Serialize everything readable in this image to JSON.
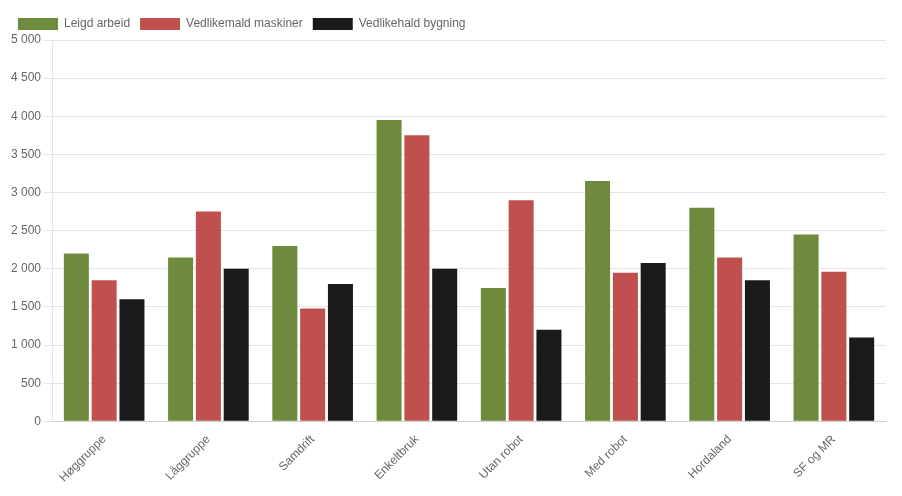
{
  "chart_data": {
    "type": "bar",
    "categories": [
      "Høggruppe",
      "Låggruppe",
      "Samdrift",
      "Enkeltbruk",
      "Utan robot",
      "Med robot",
      "Hordaland",
      "SF og MR"
    ],
    "series": [
      {
        "name": "Leigd arbeid",
        "color": "#6e8b3d",
        "values": [
          2200,
          2150,
          2300,
          3950,
          1750,
          3150,
          2800,
          2450
        ]
      },
      {
        "name": "Vedlikemald maskiner",
        "color": "#c0504d",
        "values": [
          1850,
          2750,
          1480,
          3750,
          2900,
          1950,
          2150,
          1960
        ]
      },
      {
        "name": "Vedlikehald bygning",
        "color": "#1a1a1a",
        "values": [
          1600,
          2000,
          1800,
          2000,
          1200,
          2075,
          1850,
          1100
        ]
      }
    ],
    "ylim": [
      0,
      5000
    ],
    "yticks": [
      0,
      500,
      {
        "value": 1000,
        "label": "1 000"
      },
      {
        "value": 1500,
        "label": "1 500"
      },
      {
        "value": 2000,
        "label": "2 000"
      },
      {
        "value": 2500,
        "label": "2 500"
      },
      {
        "value": 3000,
        "label": "3 000"
      },
      {
        "value": 3500,
        "label": "3 500"
      },
      {
        "value": 4000,
        "label": "4 000"
      },
      {
        "value": 4500,
        "label": "4 500"
      },
      {
        "value": 5000,
        "label": "5 000"
      }
    ],
    "grid": true,
    "legend": "upper left"
  }
}
